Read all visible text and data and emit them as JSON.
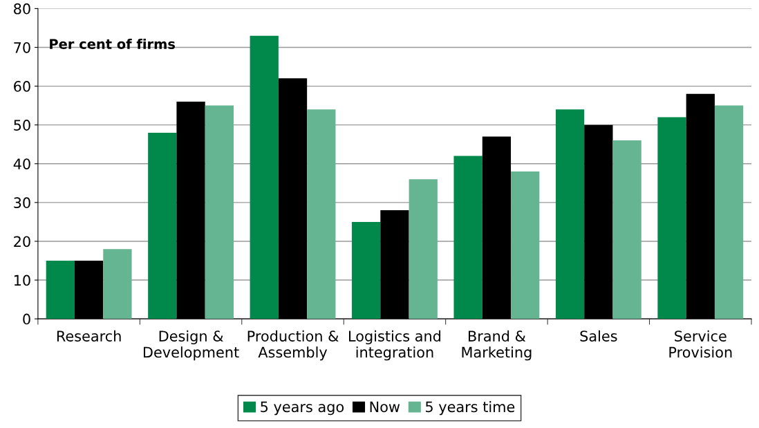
{
  "chart_data": {
    "type": "bar",
    "categories": [
      "Research",
      "Design &\nDevelopment",
      "Production &\nAssembly",
      "Logistics and\nintegration",
      "Brand &\nMarketing",
      "Sales",
      "Service\nProvision"
    ],
    "series": [
      {
        "name": "5 years ago",
        "color": "#00894b",
        "values": [
          15,
          48,
          73,
          25,
          42,
          54,
          52
        ]
      },
      {
        "name": "Now",
        "color": "#000000",
        "values": [
          15,
          56,
          62,
          28,
          47,
          50,
          58
        ]
      },
      {
        "name": "5 years time",
        "color": "#66b592",
        "values": [
          18,
          55,
          54,
          36,
          38,
          46,
          55
        ]
      }
    ],
    "annotations": [
      "Per cent of firms"
    ],
    "ylim": [
      0,
      80
    ],
    "yticks": [
      0,
      10,
      20,
      30,
      40,
      50,
      60,
      70,
      80
    ],
    "grid": "y",
    "legend": "bottom"
  }
}
